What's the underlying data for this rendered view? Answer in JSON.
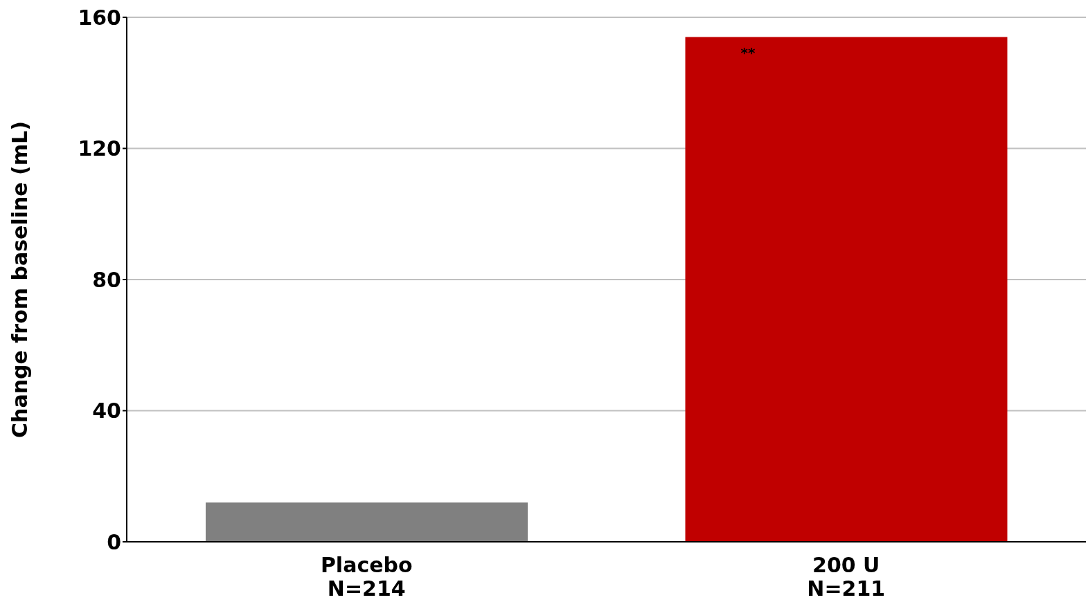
{
  "chart_data": {
    "type": "bar",
    "ylabel": "Change from baseline (mL)",
    "categories": [
      "Placebo\nN=214",
      "200 U\nN=211"
    ],
    "values": [
      12,
      154
    ],
    "colors": [
      "#808080",
      "#c00000"
    ],
    "ylim": [
      0,
      160
    ],
    "yticks": [
      0,
      40,
      80,
      120,
      160
    ],
    "grid": "y",
    "annotations": [
      "**"
    ]
  }
}
